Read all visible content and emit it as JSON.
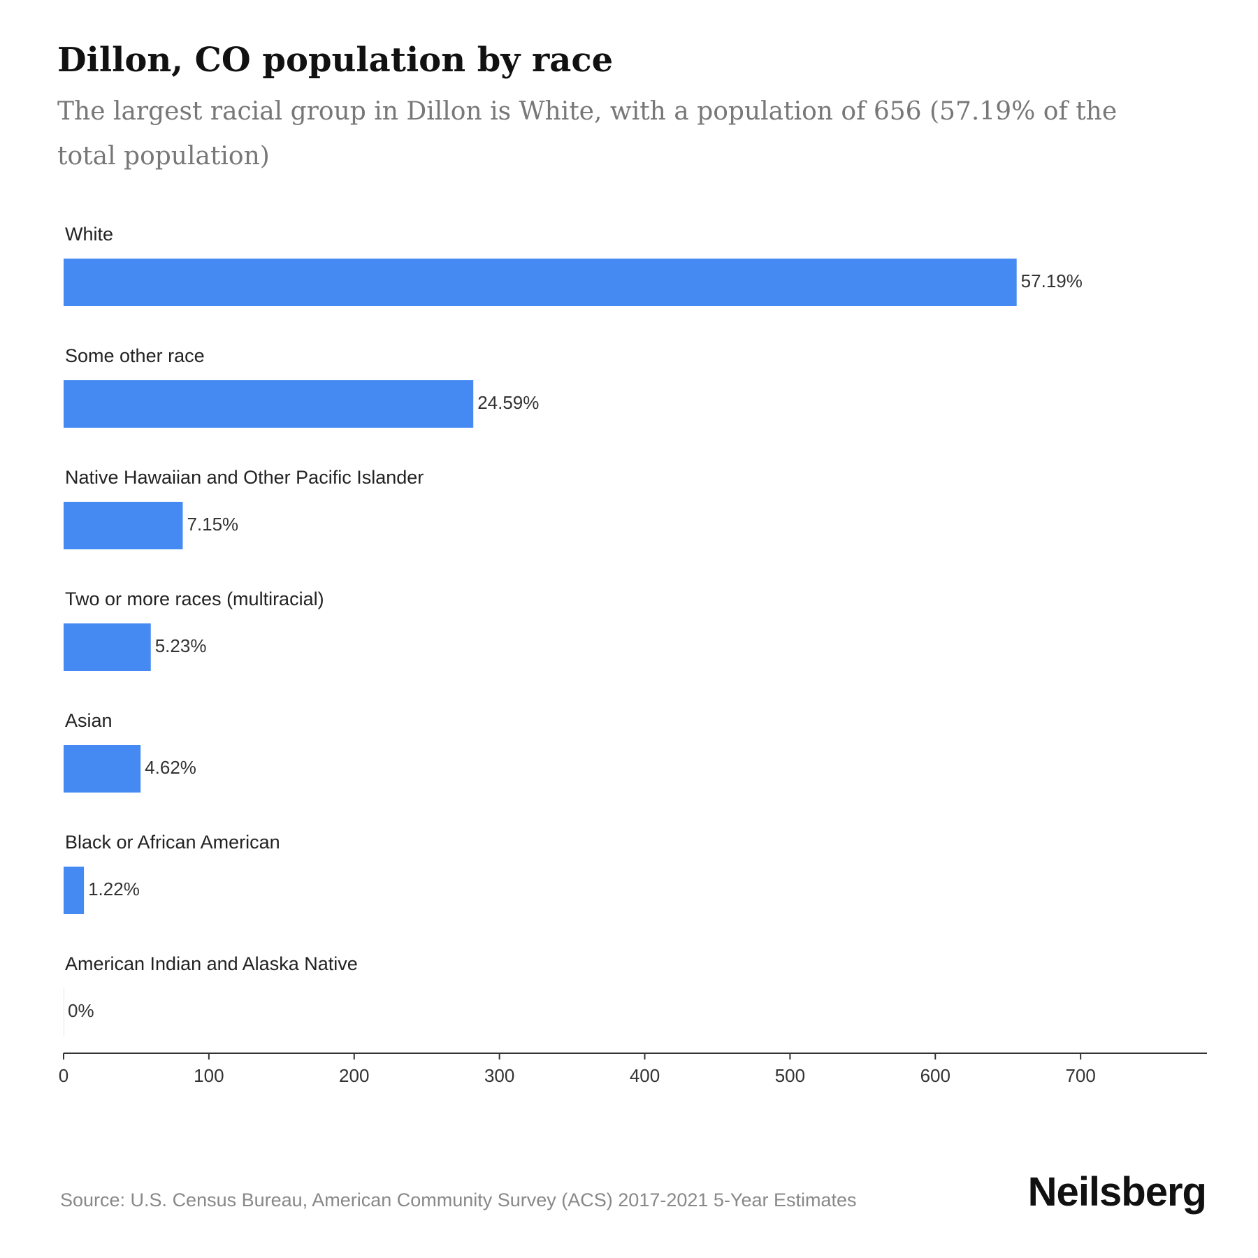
{
  "title": "Dillon, CO population by race",
  "subtitle": "The largest racial group in Dillon is White, with a population of 656 (57.19% of the total population)",
  "source": "Source: U.S. Census Bureau, American Community Survey (ACS) 2017-2021 5-Year Estimates",
  "brand": "Neilsberg",
  "colors": {
    "bar": "#4589f3",
    "axis": "#333333"
  },
  "chart_data": {
    "type": "bar",
    "orientation": "horizontal",
    "title": "Dillon, CO population by race",
    "subtitle": "The largest racial group in Dillon is White, with a population of 656 (57.19% of the total population)",
    "categories": [
      "White",
      "Some other race",
      "Native Hawaiian and Other Pacific Islander",
      "Two or more races (multiracial)",
      "Asian",
      "Black or African American",
      "American Indian and Alaska Native"
    ],
    "values": [
      656,
      282,
      82,
      60,
      53,
      14,
      0
    ],
    "value_labels": [
      "57.19%",
      "24.59%",
      "7.15%",
      "5.23%",
      "4.62%",
      "1.22%",
      "0%"
    ],
    "xlim": [
      0,
      787
    ],
    "xticks": [
      0,
      100,
      200,
      300,
      400,
      500,
      600,
      700
    ],
    "xlabel": "",
    "ylabel": "",
    "grid": false,
    "legend": "none"
  }
}
